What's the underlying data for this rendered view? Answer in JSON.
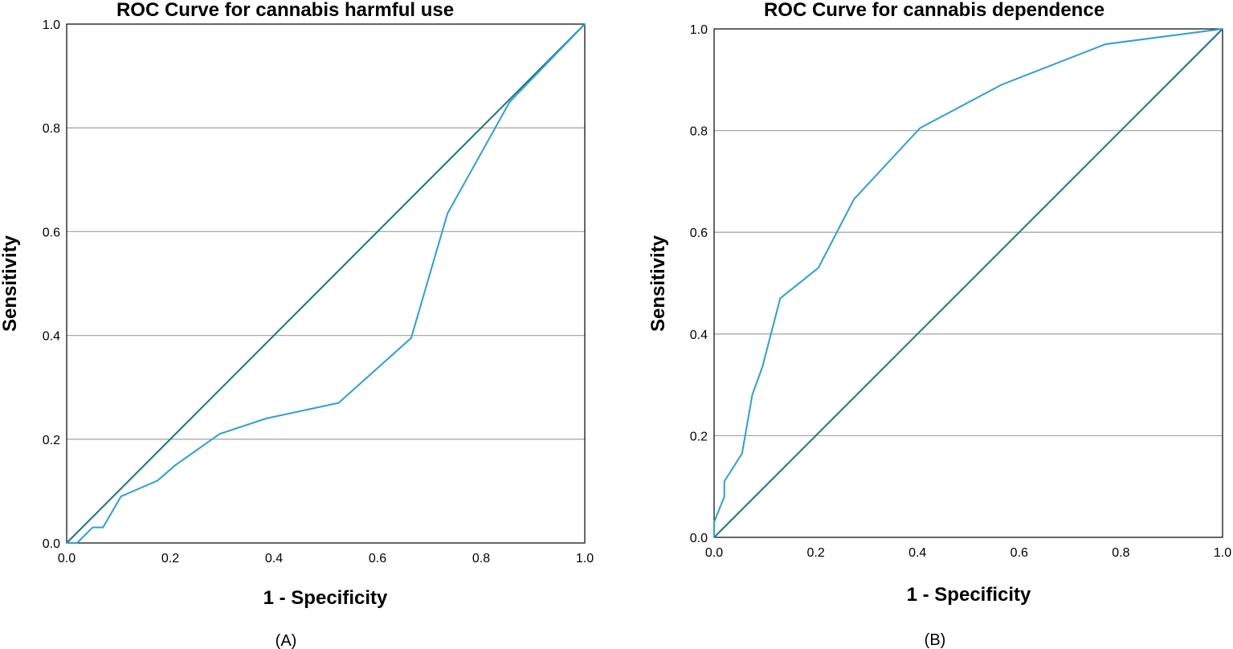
{
  "chart_data": [
    {
      "type": "line",
      "panel_label": "(A)",
      "title": "ROC Curve for cannabis harmful use",
      "xlabel": "1 - Specificity",
      "ylabel": "Sensitivity",
      "xlim": [
        0,
        1
      ],
      "ylim": [
        0,
        1
      ],
      "xticks": [
        "0.0",
        "0.2",
        "0.4",
        "0.6",
        "0.8",
        "1.0"
      ],
      "yticks": [
        "0.0",
        "0.2",
        "0.4",
        "0.6",
        "0.8",
        "1.0"
      ],
      "grid": true,
      "series": [
        {
          "name": "ROC curve",
          "color": "#2e9fd6",
          "x": [
            0.0,
            0.02,
            0.05,
            0.07,
            0.105,
            0.175,
            0.21,
            0.295,
            0.385,
            0.525,
            0.665,
            0.735,
            0.855,
            1.0
          ],
          "y": [
            0.0,
            0.0,
            0.03,
            0.03,
            0.09,
            0.12,
            0.15,
            0.21,
            0.24,
            0.27,
            0.395,
            0.635,
            0.85,
            1.0
          ]
        },
        {
          "name": "Reference line",
          "color": "#1a7582",
          "x": [
            0.0,
            1.0
          ],
          "y": [
            0.0,
            1.0
          ]
        }
      ]
    },
    {
      "type": "line",
      "panel_label": "(B)",
      "title": "ROC Curve for cannabis dependence",
      "xlabel": "1 - Specificity",
      "ylabel": "Sensitivity",
      "xlim": [
        0,
        1
      ],
      "ylim": [
        0,
        1
      ],
      "xticks": [
        "0.0",
        "0.2",
        "0.4",
        "0.6",
        "0.8",
        "1.0"
      ],
      "yticks": [
        "0.0",
        "0.2",
        "0.4",
        "0.6",
        "0.8",
        "1.0"
      ],
      "grid": true,
      "series": [
        {
          "name": "ROC curve",
          "color": "#2e9fd6",
          "x": [
            0.0,
            0.0,
            0.02,
            0.02,
            0.055,
            0.075,
            0.095,
            0.13,
            0.205,
            0.275,
            0.405,
            0.565,
            0.77,
            1.0
          ],
          "y": [
            0.0,
            0.03,
            0.08,
            0.11,
            0.165,
            0.28,
            0.335,
            0.47,
            0.53,
            0.665,
            0.805,
            0.89,
            0.97,
            1.0
          ]
        },
        {
          "name": "Reference line",
          "color": "#1a7582",
          "x": [
            0.0,
            1.0
          ],
          "y": [
            0.0,
            1.0
          ]
        }
      ]
    }
  ]
}
